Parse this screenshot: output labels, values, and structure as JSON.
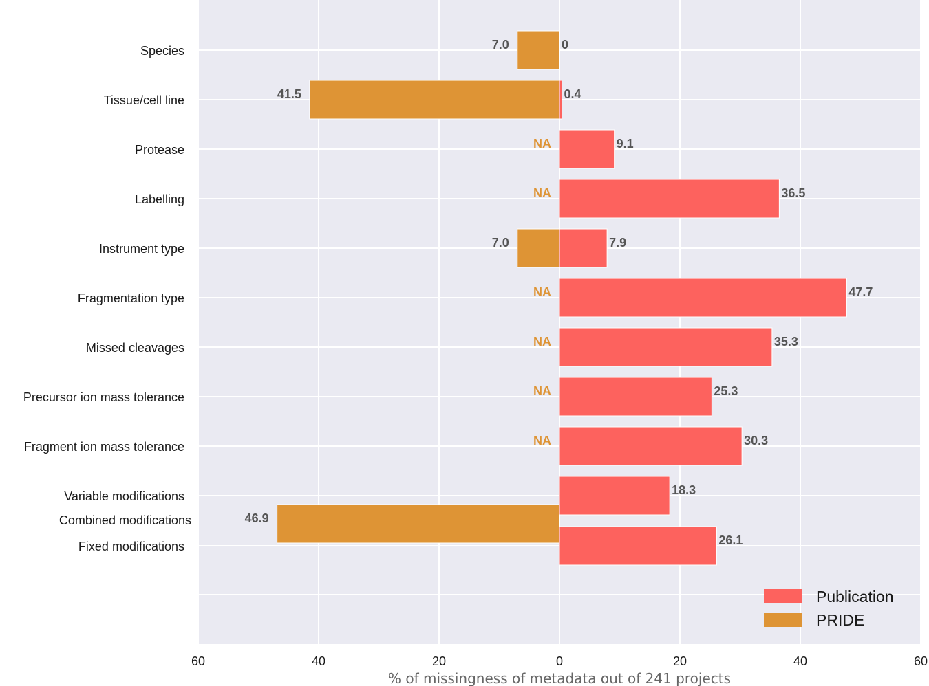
{
  "chart_data": {
    "type": "bar",
    "orientation": "horizontal-diverging",
    "xlabel": "% of missingness of metadata out of 241 projects",
    "xlim": [
      -60,
      60
    ],
    "xticks": [
      -60,
      -40,
      -20,
      0,
      20,
      40,
      60
    ],
    "xtick_labels": [
      "60",
      "40",
      "20",
      "0",
      "20",
      "40",
      "60"
    ],
    "grid": true,
    "legend_position": "bottom-right",
    "colors": {
      "publication": "#fd625e",
      "pride": "#de9435",
      "background": "#eaeaf2",
      "grid": "#ffffff"
    },
    "series": [
      {
        "name": "Publication",
        "direction": "right"
      },
      {
        "name": "PRIDE",
        "direction": "left"
      }
    ],
    "categories": [
      "Species",
      "Tissue/cell line",
      "Protease",
      "Labelling",
      "Instrument type",
      "Fragmentation type",
      "Missed cleavages",
      "Precursor ion mass tolerance",
      "Fragment ion mass tolerance",
      "Variable modifications",
      "Combined modifications",
      "Fixed modifications"
    ],
    "publication": [
      {
        "category": "Species",
        "value": 0,
        "label": "0"
      },
      {
        "category": "Tissue/cell line",
        "value": 0.4,
        "label": "0.4"
      },
      {
        "category": "Protease",
        "value": 9.1,
        "label": "9.1"
      },
      {
        "category": "Labelling",
        "value": 36.5,
        "label": "36.5"
      },
      {
        "category": "Instrument type",
        "value": 7.9,
        "label": "7.9"
      },
      {
        "category": "Fragmentation type",
        "value": 47.7,
        "label": "47.7"
      },
      {
        "category": "Missed cleavages",
        "value": 35.3,
        "label": "35.3"
      },
      {
        "category": "Precursor ion mass tolerance",
        "value": 25.3,
        "label": "25.3"
      },
      {
        "category": "Fragment ion mass tolerance",
        "value": 30.3,
        "label": "30.3"
      },
      {
        "category": "Variable modifications",
        "value": 18.3,
        "label": "18.3"
      },
      {
        "category": "Fixed modifications",
        "value": 26.1,
        "label": "26.1"
      }
    ],
    "pride": [
      {
        "category": "Species",
        "value": 7.0,
        "label": "7.0"
      },
      {
        "category": "Tissue/cell line",
        "value": 41.5,
        "label": "41.5"
      },
      {
        "category": "Protease",
        "value": null,
        "label": "NA"
      },
      {
        "category": "Labelling",
        "value": null,
        "label": "NA"
      },
      {
        "category": "Instrument type",
        "value": 7.0,
        "label": "7.0"
      },
      {
        "category": "Fragmentation type",
        "value": null,
        "label": "NA"
      },
      {
        "category": "Missed cleavages",
        "value": null,
        "label": "NA"
      },
      {
        "category": "Precursor ion mass tolerance",
        "value": null,
        "label": "NA"
      },
      {
        "category": "Fragment ion mass tolerance",
        "value": null,
        "label": "NA"
      },
      {
        "category": "Combined modifications",
        "value": 46.9,
        "label": "46.9"
      }
    ]
  }
}
